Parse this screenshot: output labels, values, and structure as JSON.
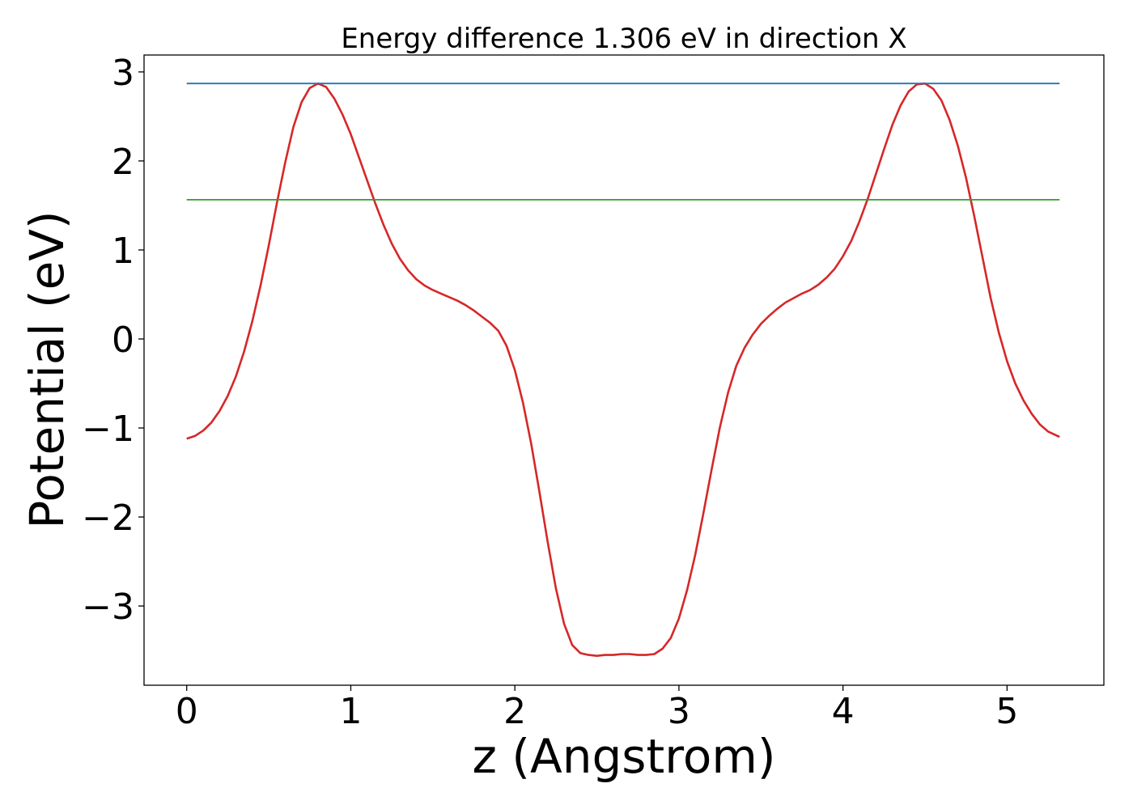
{
  "chart_data": {
    "type": "line",
    "title": "Energy difference 1.306 eV in direction X",
    "xlabel": "z (Angstrom)",
    "ylabel": "Potential (eV)",
    "xlim": [
      -0.26,
      5.59
    ],
    "ylim": [
      -3.89,
      3.19
    ],
    "xticks": [
      0,
      1,
      2,
      3,
      4,
      5
    ],
    "yticks": [
      3,
      2,
      1,
      0,
      -1,
      -2,
      -3
    ],
    "xtick_labels": [
      "0",
      "1",
      "2",
      "3",
      "4",
      "5"
    ],
    "ytick_labels": [
      "3",
      "2",
      "1",
      "0",
      "−1",
      "−2",
      "−3"
    ],
    "grid": false,
    "legend": "none",
    "series": [
      {
        "color": "#d62728",
        "x": [
          0,
          0.05,
          0.1,
          0.15,
          0.2,
          0.25,
          0.3,
          0.35,
          0.4,
          0.45,
          0.5,
          0.55,
          0.6,
          0.65,
          0.7,
          0.75,
          0.8,
          0.85,
          0.9,
          0.95,
          1.0,
          1.05,
          1.1,
          1.15,
          1.2,
          1.25,
          1.3,
          1.35,
          1.4,
          1.45,
          1.5,
          1.55,
          1.6,
          1.65,
          1.7,
          1.75,
          1.8,
          1.85,
          1.9,
          1.95,
          2.0,
          2.05,
          2.1,
          2.15,
          2.2,
          2.25,
          2.3,
          2.35,
          2.4,
          2.45,
          2.5,
          2.55,
          2.6,
          2.65,
          2.7,
          2.75,
          2.8,
          2.85,
          2.9,
          2.95,
          3.0,
          3.05,
          3.1,
          3.15,
          3.2,
          3.25,
          3.3,
          3.35,
          3.4,
          3.45,
          3.5,
          3.55,
          3.6,
          3.65,
          3.7,
          3.75,
          3.8,
          3.85,
          3.9,
          3.95,
          4.0,
          4.05,
          4.1,
          4.15,
          4.2,
          4.25,
          4.3,
          4.35,
          4.4,
          4.45,
          4.5,
          4.55,
          4.6,
          4.65,
          4.7,
          4.75,
          4.8,
          4.85,
          4.9,
          4.95,
          5.0,
          5.05,
          5.1,
          5.15,
          5.2,
          5.25,
          5.32
        ],
        "y": [
          -1.12,
          -1.09,
          -1.03,
          -0.94,
          -0.81,
          -0.64,
          -0.42,
          -0.14,
          0.2,
          0.6,
          1.05,
          1.53,
          1.98,
          2.38,
          2.66,
          2.82,
          2.87,
          2.83,
          2.7,
          2.52,
          2.3,
          2.04,
          1.78,
          1.52,
          1.28,
          1.07,
          0.9,
          0.77,
          0.67,
          0.6,
          0.55,
          0.51,
          0.47,
          0.43,
          0.38,
          0.32,
          0.25,
          0.18,
          0.09,
          -0.08,
          -0.35,
          -0.72,
          -1.18,
          -1.72,
          -2.28,
          -2.8,
          -3.2,
          -3.44,
          -3.53,
          -3.55,
          -3.56,
          -3.55,
          -3.55,
          -3.54,
          -3.54,
          -3.55,
          -3.55,
          -3.54,
          -3.48,
          -3.36,
          -3.14,
          -2.82,
          -2.42,
          -1.95,
          -1.46,
          -0.99,
          -0.6,
          -0.3,
          -0.1,
          0.05,
          0.17,
          0.26,
          0.34,
          0.41,
          0.46,
          0.51,
          0.55,
          0.61,
          0.69,
          0.79,
          0.93,
          1.1,
          1.32,
          1.57,
          1.85,
          2.13,
          2.4,
          2.62,
          2.78,
          2.86,
          2.87,
          2.81,
          2.68,
          2.46,
          2.17,
          1.81,
          1.38,
          0.92,
          0.46,
          0.07,
          -0.25,
          -0.5,
          -0.69,
          -0.84,
          -0.96,
          -1.04,
          -1.1
        ]
      },
      {
        "color": "#1f77b4",
        "x": [
          0,
          5.32
        ],
        "y": [
          2.87,
          2.87
        ]
      },
      {
        "color": "#2ca02c",
        "x": [
          0,
          5.32
        ],
        "y": [
          1.564,
          1.564
        ]
      }
    ]
  },
  "colors": {
    "frame": "#000000",
    "background": "#ffffff"
  }
}
